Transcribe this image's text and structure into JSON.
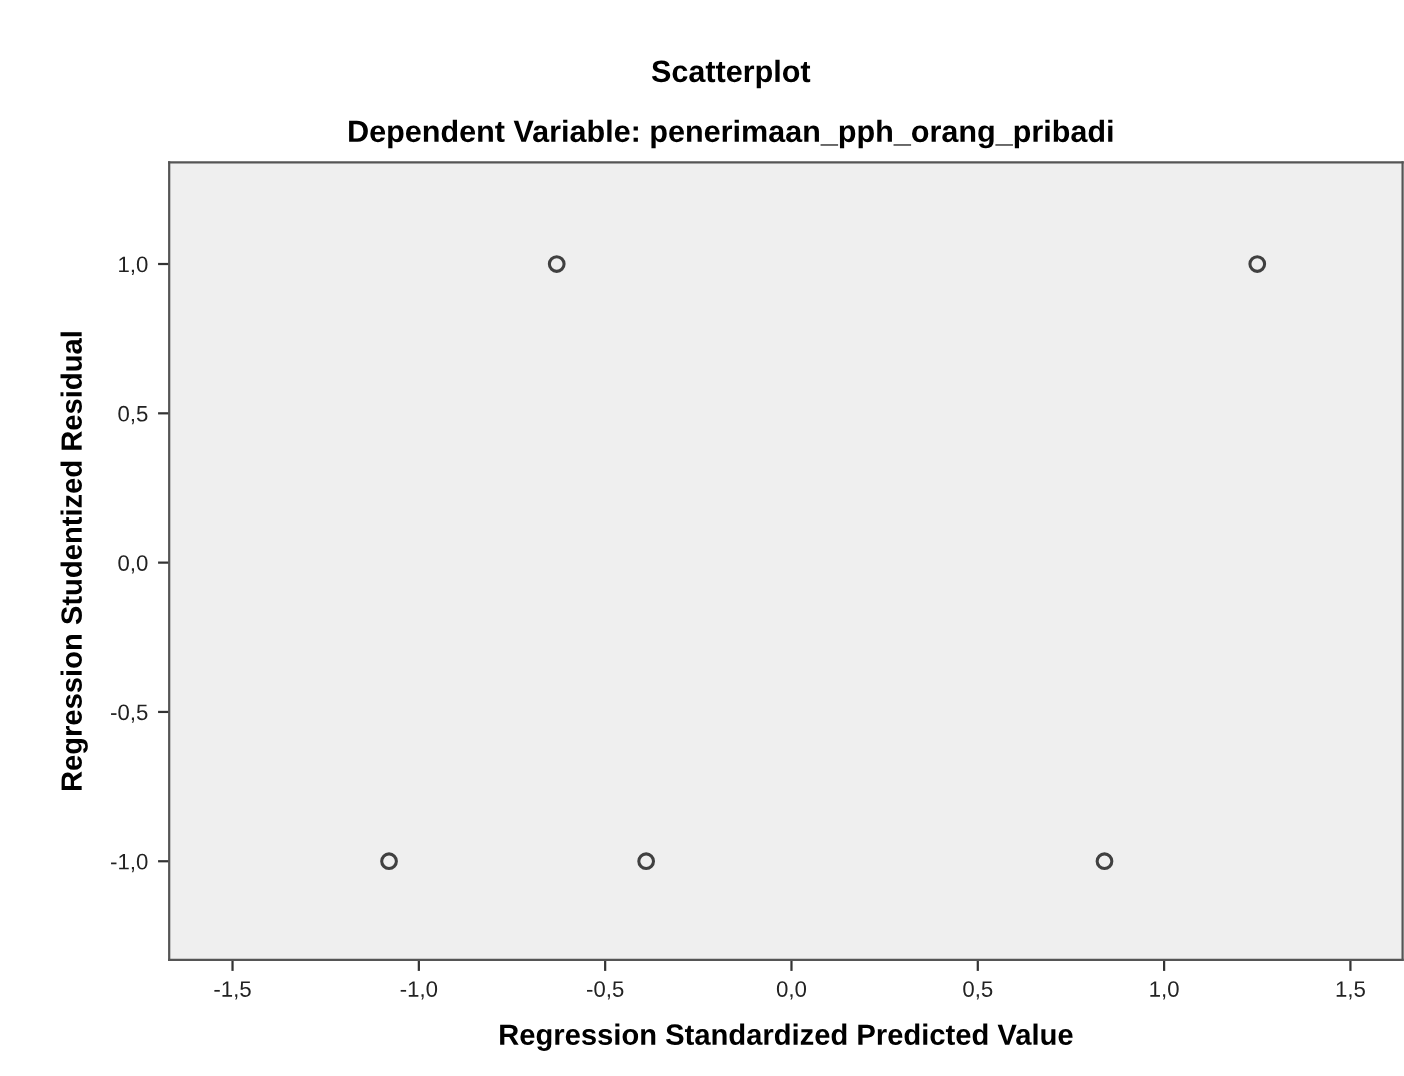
{
  "chart_data": {
    "type": "scatter",
    "title": "Scatterplot",
    "subtitle": "Dependent Variable: penerimaan_pph_orang_pribadi",
    "xlabel": "Regression Standardized Predicted Value",
    "ylabel": "Regression Studentized Residual",
    "x": [
      -1.08,
      -0.63,
      -0.39,
      0.84,
      1.25
    ],
    "series": [
      {
        "color": "#404040",
        "values": [
          -1.0,
          1.0,
          -1.0,
          -1.0,
          1.0
        ]
      }
    ],
    "marker": "circle",
    "grid": false,
    "xlim": [
      -1.67,
      1.64
    ],
    "ylim": [
      -1.33,
      1.34
    ],
    "xticks": [
      {
        "value": -1.5,
        "label": "-1,5"
      },
      {
        "value": -1.0,
        "label": "-1,0"
      },
      {
        "value": -0.5,
        "label": "-0,5"
      },
      {
        "value": 0.0,
        "label": "0,0"
      },
      {
        "value": 0.5,
        "label": "0,5"
      },
      {
        "value": 1.0,
        "label": "1,0"
      },
      {
        "value": 1.5,
        "label": "1,5"
      }
    ],
    "yticks": [
      {
        "value": -1.0,
        "label": "-1,0"
      },
      {
        "value": -0.5,
        "label": "-0,5"
      },
      {
        "value": 0.0,
        "label": "0,0"
      },
      {
        "value": 0.5,
        "label": "0,5"
      },
      {
        "value": 1.0,
        "label": "1,0"
      }
    ]
  }
}
